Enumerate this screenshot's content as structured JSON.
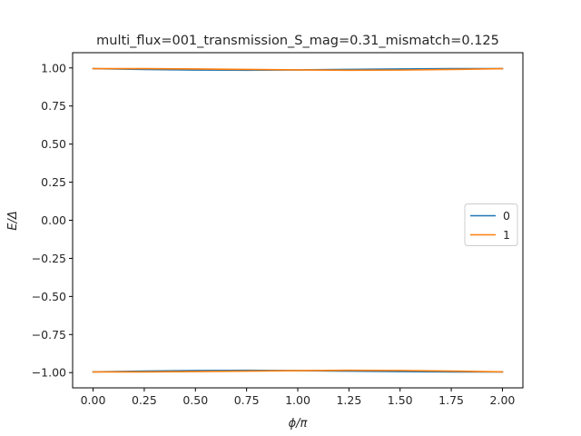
{
  "chart_data": {
    "type": "line",
    "title": "multi_flux=001_transmission_S_mag=0.31_mismatch=0.125",
    "xlabel": "ϕ/π",
    "ylabel": "E/Δ",
    "xlim": [
      -0.1,
      2.1
    ],
    "ylim": [
      -1.1,
      1.1
    ],
    "xticks": [
      "0.00",
      "0.25",
      "0.50",
      "0.75",
      "1.00",
      "1.25",
      "1.50",
      "1.75",
      "2.00"
    ],
    "yticks": [
      "1.00",
      "0.75",
      "0.50",
      "0.25",
      "0.00",
      "−0.25",
      "−0.50",
      "−0.75",
      "−1.00"
    ],
    "grid": false,
    "legend_position": "center-right",
    "x": [
      0.0,
      0.25,
      0.5,
      0.75,
      1.0,
      1.25,
      1.5,
      1.75,
      2.0
    ],
    "series": [
      {
        "name": "0",
        "color": "#1f77b4",
        "branches": [
          [
            0.995,
            0.99,
            0.986,
            0.985,
            0.987,
            0.99,
            0.993,
            0.995,
            0.995
          ],
          [
            -0.995,
            -0.99,
            -0.986,
            -0.985,
            -0.987,
            -0.99,
            -0.993,
            -0.995,
            -0.995
          ]
        ]
      },
      {
        "name": "1",
        "color": "#ff7f0e",
        "branches": [
          [
            0.995,
            0.995,
            0.993,
            0.99,
            0.987,
            0.985,
            0.986,
            0.99,
            0.995
          ],
          [
            -0.995,
            -0.995,
            -0.993,
            -0.99,
            -0.987,
            -0.985,
            -0.986,
            -0.99,
            -0.995
          ]
        ]
      }
    ]
  }
}
